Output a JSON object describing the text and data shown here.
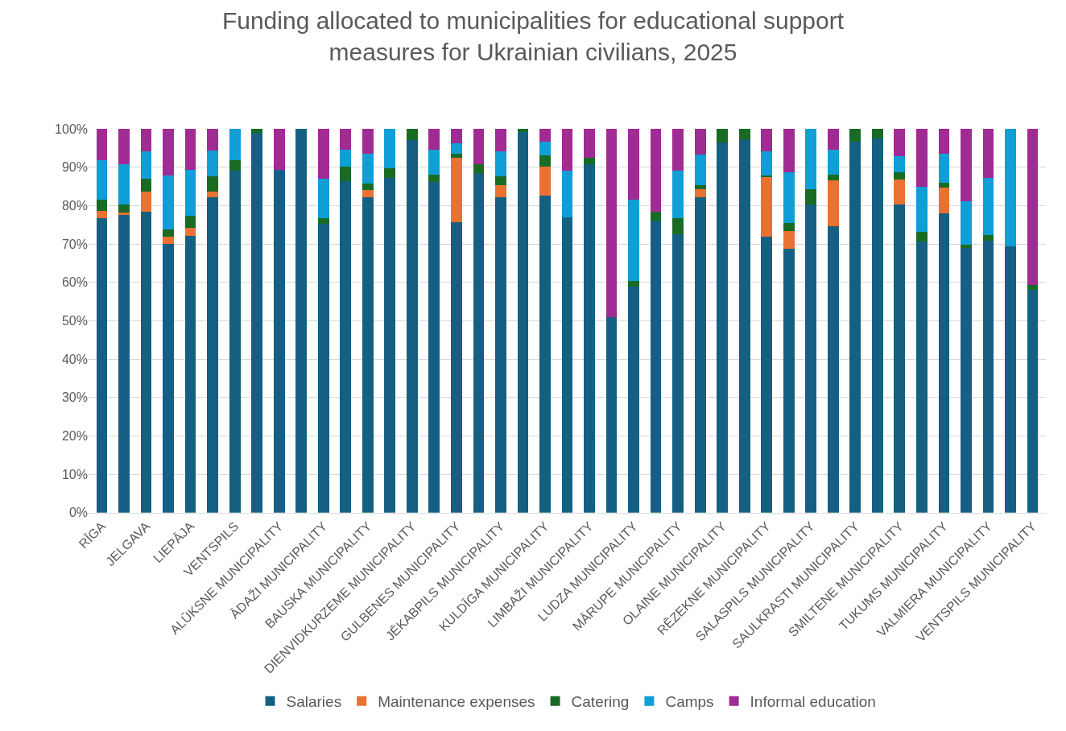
{
  "chart_data": {
    "type": "bar",
    "stacked": true,
    "title": "Funding allocated to municipalities for educational support measures for Ukrainian civilians, 2025",
    "categories": [
      "RĪGA",
      null,
      "JELGAVA",
      null,
      "LIEPĀJA",
      null,
      "VENTSPILS",
      null,
      "ALŪKSNE MUNICIPALITY",
      null,
      "ĀDAŽI MUNICIPALITY",
      null,
      "BAUSKA MUNICIPALITY",
      null,
      "DIENVIDKURZEME MUNICIPALITY",
      null,
      "GULBENES MUNICIPALITY",
      null,
      "JĒKABPILS MUNICIPALITY",
      null,
      "KULDĪGA MUNICIPALITY",
      null,
      "LIMBAŽI MUNICIPALITY",
      null,
      "LUDZA MUNICIPALITY",
      null,
      "MĀRUPE MUNICIPALITY",
      null,
      "OLAINE MUNICIPALITY",
      null,
      "RĒZEKNE MUNICIPALITY",
      null,
      "SALASPILS MUNICIPALITY",
      null,
      "SAULKRASTI MUNICIPALITY",
      null,
      "SMILTENE MUNICIPALITY",
      null,
      "TUKUMS MUNICIPALITY",
      null,
      "VALMIERA MUNICIPALITY",
      null,
      "VENTSPILS MUNICIPALITY"
    ],
    "series": [
      {
        "name": "Salaries",
        "color": "#156082",
        "values": [
          76.7,
          77.7,
          78.4,
          70.1,
          72.2,
          82.2,
          89.0,
          98.9,
          89.4,
          100,
          75.3,
          86.4,
          82.1,
          87.3,
          97.1,
          86.1,
          75.7,
          88.4,
          82.1,
          99.1,
          82.5,
          76.9,
          90.8,
          51.0,
          58.8,
          76.0,
          72.5,
          82.2,
          96.4,
          97.3,
          71.9,
          68.7,
          80.3,
          74.7,
          96.6,
          97.4,
          80.3,
          70.7,
          78.0,
          69.0,
          70.8,
          69.4,
          58.0
        ]
      },
      {
        "name": "Maintenance expenses",
        "color": "#e97132",
        "values": [
          1.9,
          0.4,
          5.3,
          1.9,
          2.0,
          1.5,
          0,
          0,
          0,
          0,
          0,
          0,
          2.0,
          0,
          0,
          0,
          16.8,
          0,
          3.2,
          0,
          7.6,
          0,
          0,
          0,
          0,
          0,
          0,
          2.1,
          0,
          0,
          15.6,
          4.6,
          0,
          11.8,
          0,
          0,
          6.4,
          0,
          6.7,
          0,
          0,
          0,
          0
        ]
      },
      {
        "name": "Catering",
        "color": "#196b24",
        "values": [
          3.0,
          2.2,
          3.2,
          1.7,
          3.1,
          4.0,
          2.9,
          1.1,
          0,
          0,
          1.4,
          3.7,
          1.7,
          2.5,
          2.9,
          2.0,
          0.9,
          2.3,
          2.3,
          0.9,
          2.9,
          0,
          1.7,
          0,
          1.5,
          2.4,
          4.2,
          1.1,
          3.6,
          2.7,
          0.3,
          2.1,
          4.0,
          1.6,
          3.4,
          2.6,
          2.0,
          2.5,
          1.2,
          0.9,
          1.6,
          0,
          1.3
        ]
      },
      {
        "name": "Camps",
        "color": "#0f9ed5",
        "values": [
          10.2,
          10.5,
          7.2,
          14.2,
          12.1,
          6.6,
          8.1,
          0,
          0,
          0,
          10.2,
          4.4,
          7.7,
          10.2,
          0,
          6.5,
          2.8,
          0,
          6.6,
          0,
          3.7,
          12.2,
          0,
          0,
          21.3,
          0,
          12.4,
          7.9,
          0,
          0,
          6.3,
          13.2,
          15.7,
          6.5,
          0,
          0,
          4.1,
          11.6,
          7.7,
          11.2,
          14.9,
          30.6,
          0
        ]
      },
      {
        "name": "Informal education",
        "color": "#a02b93",
        "values": [
          8.2,
          9.2,
          5.9,
          12.1,
          10.6,
          5.7,
          0,
          0,
          10.6,
          0,
          13.1,
          5.5,
          6.5,
          0,
          0,
          5.4,
          3.8,
          9.3,
          5.8,
          0,
          3.3,
          10.9,
          7.5,
          49.0,
          18.4,
          21.6,
          10.9,
          6.7,
          0,
          0,
          5.9,
          11.4,
          0,
          5.4,
          0,
          0,
          7.2,
          15.2,
          6.4,
          18.9,
          12.7,
          0,
          40.7
        ]
      }
    ],
    "ylim": [
      0,
      100
    ],
    "yticks": [
      {
        "value": 0,
        "label": "0%"
      },
      {
        "value": 10,
        "label": "10%"
      },
      {
        "value": 20,
        "label": "20%"
      },
      {
        "value": 30,
        "label": "30%"
      },
      {
        "value": 40,
        "label": "40%"
      },
      {
        "value": 50,
        "label": "50%"
      },
      {
        "value": 60,
        "label": "60%"
      },
      {
        "value": 70,
        "label": "70%"
      },
      {
        "value": 80,
        "label": "80%"
      },
      {
        "value": 90,
        "label": "90%"
      },
      {
        "value": 100,
        "label": "100%"
      }
    ],
    "grid": "y",
    "legend": "bottom"
  }
}
